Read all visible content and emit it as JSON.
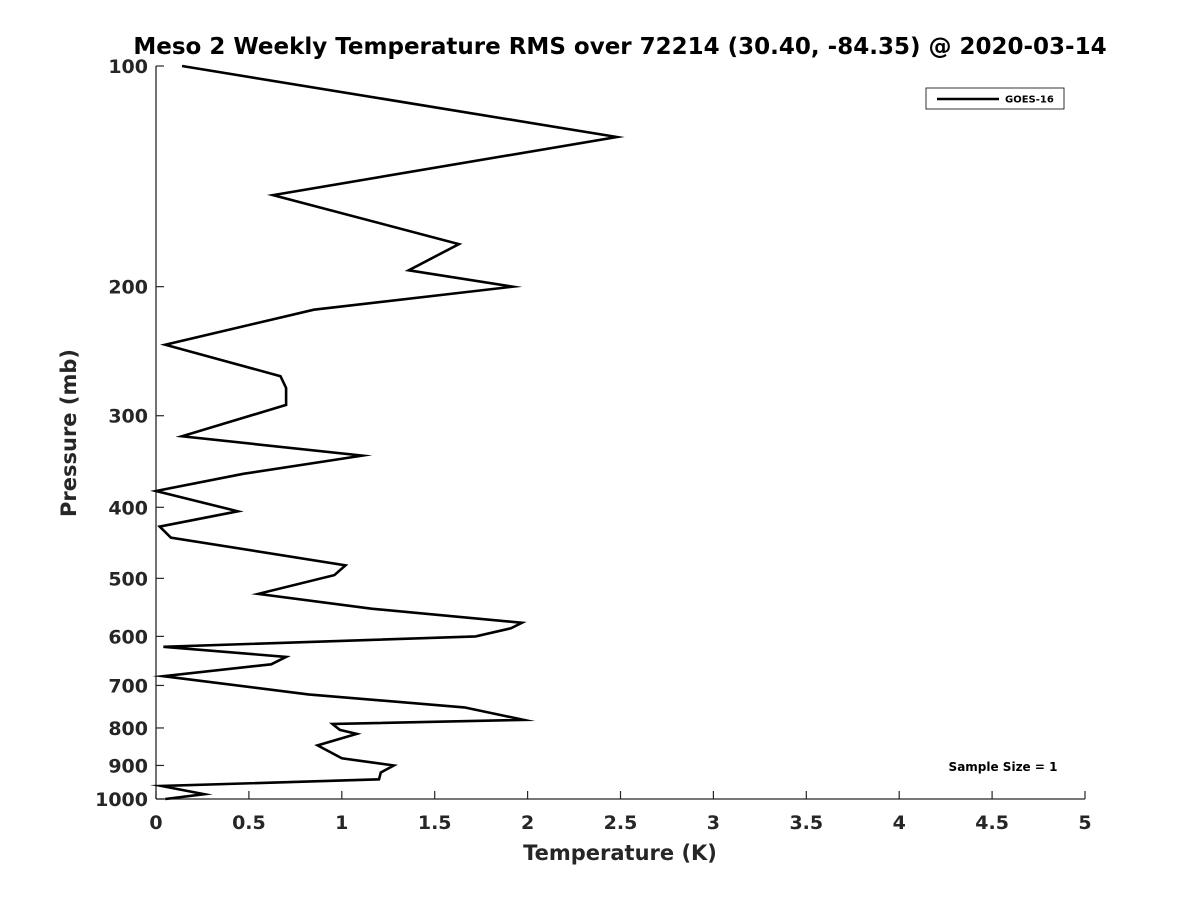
{
  "chart_data": {
    "type": "line",
    "title": "Meso 2 Weekly Temperature RMS over 72214 (30.40, -84.35) @ 2020-03-14",
    "xlabel": "Temperature (K)",
    "ylabel": "Pressure (mb)",
    "xlim": [
      0,
      5
    ],
    "ylim": [
      100,
      1000
    ],
    "y_scale": "log",
    "y_reversed": true,
    "grid": false,
    "legend_position": "top-right",
    "x_ticks": [
      "0",
      "0.5",
      "1",
      "1.5",
      "2",
      "2.5",
      "3",
      "3.5",
      "4",
      "4.5",
      "5"
    ],
    "y_ticks": [
      "100",
      "200",
      "300",
      "400",
      "500",
      "600",
      "700",
      "800",
      "900",
      "1000"
    ],
    "series": [
      {
        "name": "GOES-16",
        "color": "#000000",
        "x": [
          0.14,
          2.48,
          0.63,
          1.63,
          1.36,
          1.92,
          0.85,
          0.05,
          0.67,
          0.7,
          0.7,
          0.14,
          1.11,
          0.47,
          0.0,
          0.44,
          0.02,
          0.08,
          1.02,
          0.96,
          0.55,
          1.16,
          1.97,
          1.91,
          1.72,
          0.04,
          0.7,
          0.62,
          0.04,
          0.82,
          1.66,
          1.98,
          0.95,
          0.99,
          1.08,
          0.87,
          1.0,
          1.28,
          1.21,
          1.2,
          0.03,
          0.26,
          0.05
        ],
        "y": [
          100,
          125,
          150,
          175,
          190,
          200,
          215,
          240,
          265,
          275,
          290,
          320,
          340,
          360,
          380,
          405,
          425,
          440,
          480,
          495,
          525,
          550,
          575,
          585,
          600,
          620,
          640,
          655,
          680,
          720,
          750,
          780,
          790,
          805,
          815,
          845,
          880,
          900,
          920,
          940,
          960,
          985,
          1000
        ]
      }
    ],
    "annotations": [
      "Sample Size = 1"
    ]
  }
}
